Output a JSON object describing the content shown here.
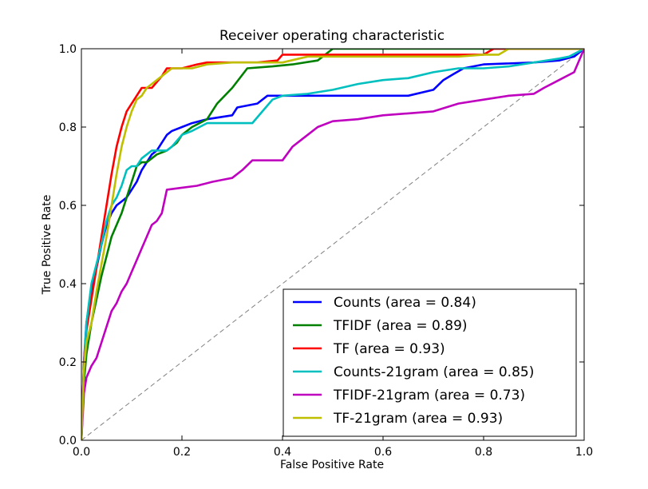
{
  "chart_data": {
    "type": "line",
    "title": "Receiver operating characteristic",
    "xlabel": "False Positive Rate",
    "ylabel": "True Positive Rate",
    "xlim": [
      0.0,
      1.0
    ],
    "ylim": [
      0.0,
      1.0
    ],
    "xticks": [
      "0.0",
      "0.2",
      "0.4",
      "0.6",
      "0.8",
      "1.0"
    ],
    "yticks": [
      "0.0",
      "0.2",
      "0.4",
      "0.6",
      "0.8",
      "1.0"
    ],
    "grid": false,
    "legend_position": "lower right",
    "reference_line": {
      "style": "dashed",
      "color": "#808080",
      "x": [
        0,
        1
      ],
      "y": [
        0,
        1
      ]
    },
    "series": [
      {
        "name": "Counts (area = 0.84)",
        "color": "#0000ff",
        "x": [
          0,
          0.005,
          0.01,
          0.02,
          0.03,
          0.04,
          0.05,
          0.06,
          0.07,
          0.08,
          0.09,
          0.1,
          0.11,
          0.12,
          0.13,
          0.14,
          0.15,
          0.16,
          0.17,
          0.18,
          0.2,
          0.22,
          0.25,
          0.3,
          0.31,
          0.35,
          0.37,
          0.4,
          0.45,
          0.5,
          0.55,
          0.6,
          0.65,
          0.7,
          0.72,
          0.74,
          0.76,
          0.8,
          0.9,
          0.95,
          0.98,
          1.0
        ],
        "y": [
          0.0,
          0.2,
          0.3,
          0.38,
          0.44,
          0.5,
          0.55,
          0.58,
          0.6,
          0.61,
          0.62,
          0.64,
          0.66,
          0.69,
          0.71,
          0.73,
          0.74,
          0.76,
          0.78,
          0.79,
          0.8,
          0.81,
          0.82,
          0.83,
          0.85,
          0.86,
          0.88,
          0.88,
          0.88,
          0.88,
          0.88,
          0.88,
          0.88,
          0.895,
          0.92,
          0.935,
          0.95,
          0.96,
          0.965,
          0.97,
          0.98,
          1.0
        ]
      },
      {
        "name": "TFIDF (area = 0.89)",
        "color": "#008000",
        "x": [
          0,
          0.005,
          0.01,
          0.02,
          0.03,
          0.04,
          0.05,
          0.06,
          0.07,
          0.08,
          0.09,
          0.1,
          0.11,
          0.12,
          0.13,
          0.14,
          0.15,
          0.17,
          0.19,
          0.2,
          0.22,
          0.25,
          0.27,
          0.3,
          0.33,
          0.38,
          0.42,
          0.47,
          0.5,
          1.0
        ],
        "y": [
          0.0,
          0.15,
          0.22,
          0.3,
          0.36,
          0.42,
          0.47,
          0.52,
          0.55,
          0.58,
          0.62,
          0.66,
          0.7,
          0.71,
          0.71,
          0.72,
          0.73,
          0.74,
          0.76,
          0.78,
          0.8,
          0.82,
          0.86,
          0.9,
          0.95,
          0.955,
          0.96,
          0.97,
          1.0,
          1.0
        ]
      },
      {
        "name": "TF (area = 0.93)",
        "color": "#ff0000",
        "x": [
          0,
          0.005,
          0.01,
          0.02,
          0.03,
          0.04,
          0.05,
          0.06,
          0.07,
          0.08,
          0.09,
          0.1,
          0.11,
          0.12,
          0.14,
          0.16,
          0.17,
          0.2,
          0.23,
          0.25,
          0.3,
          0.35,
          0.39,
          0.4,
          0.5,
          0.6,
          0.7,
          0.8,
          0.82,
          1.0
        ],
        "y": [
          0.0,
          0.2,
          0.28,
          0.36,
          0.44,
          0.52,
          0.6,
          0.68,
          0.75,
          0.8,
          0.84,
          0.86,
          0.88,
          0.9,
          0.9,
          0.93,
          0.95,
          0.95,
          0.96,
          0.965,
          0.965,
          0.965,
          0.97,
          0.985,
          0.985,
          0.985,
          0.985,
          0.985,
          1.0,
          1.0
        ]
      },
      {
        "name": "Counts-21gram (area = 0.85)",
        "color": "#00bfbf",
        "x": [
          0,
          0.005,
          0.01,
          0.02,
          0.03,
          0.04,
          0.05,
          0.06,
          0.07,
          0.08,
          0.09,
          0.1,
          0.11,
          0.12,
          0.13,
          0.14,
          0.15,
          0.16,
          0.17,
          0.18,
          0.2,
          0.22,
          0.25,
          0.3,
          0.34,
          0.36,
          0.38,
          0.4,
          0.45,
          0.5,
          0.55,
          0.6,
          0.65,
          0.7,
          0.75,
          0.8,
          0.85,
          0.9,
          0.95,
          0.97,
          1.0
        ],
        "y": [
          0.0,
          0.18,
          0.3,
          0.4,
          0.45,
          0.5,
          0.56,
          0.6,
          0.62,
          0.65,
          0.69,
          0.7,
          0.7,
          0.72,
          0.73,
          0.74,
          0.74,
          0.74,
          0.74,
          0.75,
          0.78,
          0.79,
          0.81,
          0.81,
          0.81,
          0.84,
          0.87,
          0.88,
          0.885,
          0.895,
          0.91,
          0.92,
          0.925,
          0.94,
          0.95,
          0.95,
          0.955,
          0.965,
          0.975,
          0.98,
          1.0
        ]
      },
      {
        "name": "TFIDF-21gram (area = 0.73)",
        "color": "#bf00bf",
        "x": [
          0,
          0.005,
          0.01,
          0.02,
          0.03,
          0.04,
          0.05,
          0.06,
          0.07,
          0.08,
          0.09,
          0.1,
          0.11,
          0.12,
          0.13,
          0.14,
          0.15,
          0.16,
          0.17,
          0.2,
          0.23,
          0.26,
          0.28,
          0.3,
          0.32,
          0.34,
          0.37,
          0.4,
          0.42,
          0.44,
          0.47,
          0.5,
          0.55,
          0.6,
          0.65,
          0.7,
          0.75,
          0.8,
          0.85,
          0.9,
          0.92,
          0.95,
          0.98,
          1.0
        ],
        "y": [
          0.0,
          0.12,
          0.16,
          0.19,
          0.21,
          0.25,
          0.29,
          0.33,
          0.35,
          0.38,
          0.4,
          0.43,
          0.46,
          0.49,
          0.52,
          0.55,
          0.56,
          0.58,
          0.64,
          0.645,
          0.65,
          0.66,
          0.665,
          0.67,
          0.69,
          0.715,
          0.715,
          0.715,
          0.75,
          0.77,
          0.8,
          0.815,
          0.82,
          0.83,
          0.835,
          0.84,
          0.86,
          0.87,
          0.88,
          0.885,
          0.9,
          0.92,
          0.94,
          1.0
        ]
      },
      {
        "name": "TF-21gram (area = 0.93)",
        "color": "#bfbf00",
        "x": [
          0,
          0.005,
          0.01,
          0.02,
          0.03,
          0.04,
          0.05,
          0.06,
          0.07,
          0.08,
          0.09,
          0.1,
          0.11,
          0.12,
          0.13,
          0.14,
          0.15,
          0.16,
          0.17,
          0.18,
          0.22,
          0.25,
          0.3,
          0.35,
          0.4,
          0.45,
          0.5,
          0.55,
          0.6,
          0.65,
          0.7,
          0.75,
          0.8,
          0.83,
          0.85,
          1.0
        ],
        "y": [
          0.0,
          0.18,
          0.25,
          0.3,
          0.38,
          0.45,
          0.52,
          0.6,
          0.68,
          0.75,
          0.8,
          0.84,
          0.87,
          0.88,
          0.9,
          0.91,
          0.92,
          0.93,
          0.94,
          0.95,
          0.95,
          0.96,
          0.965,
          0.965,
          0.965,
          0.98,
          0.98,
          0.98,
          0.98,
          0.98,
          0.98,
          0.98,
          0.985,
          0.985,
          1.0,
          1.0
        ]
      }
    ]
  }
}
